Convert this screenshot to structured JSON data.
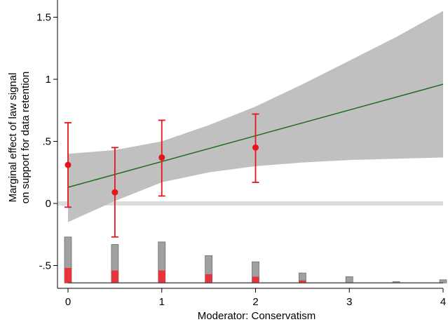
{
  "chart_data": {
    "type": "line",
    "xlabel": "Moderator: Conservatism",
    "ylabel_lines": [
      "Marginal effect of law signal",
      "on support for data retention"
    ],
    "xlim": [
      0,
      4
    ],
    "ylim": [
      -0.65,
      1.6
    ],
    "x_ticks": [
      0,
      1,
      2,
      3,
      4
    ],
    "x_tick_labels": [
      "0",
      "1",
      "2",
      "3",
      "4"
    ],
    "y_ticks": [
      0,
      0.5,
      1,
      1.5,
      -0.5
    ],
    "y_tick_labels": [
      "0",
      ".5",
      "1",
      "1.5",
      "-.5"
    ],
    "zero_line": 0,
    "grid": false,
    "fit_line": {
      "x": [
        0,
        4
      ],
      "y": [
        0.13,
        0.96
      ],
      "color": "#1a6b1a"
    },
    "confidence_band": {
      "x": [
        0,
        0.5,
        1,
        1.5,
        2,
        2.5,
        3,
        3.5,
        4
      ],
      "lower": [
        -0.15,
        0.02,
        0.17,
        0.25,
        0.3,
        0.33,
        0.35,
        0.36,
        0.37
      ],
      "upper": [
        0.4,
        0.43,
        0.5,
        0.63,
        0.78,
        0.96,
        1.15,
        1.34,
        1.55
      ],
      "color": "#c0c0c0"
    },
    "point_estimates": {
      "x": [
        0,
        0.5,
        1,
        2
      ],
      "y": [
        0.31,
        0.09,
        0.37,
        0.45
      ],
      "lower": [
        -0.03,
        -0.27,
        0.06,
        0.17
      ],
      "upper": [
        0.65,
        0.45,
        0.67,
        0.72
      ],
      "color": "#e8141c"
    },
    "histogram": {
      "baseline": -0.64,
      "x": [
        0,
        0.5,
        1,
        1.5,
        2,
        2.5,
        3,
        3.5,
        4
      ],
      "total": [
        -0.27,
        -0.33,
        -0.31,
        -0.42,
        -0.47,
        -0.56,
        -0.59,
        -0.63,
        -0.615
      ],
      "subset": [
        -0.52,
        -0.54,
        -0.54,
        -0.57,
        -0.59,
        -0.62,
        -0.635,
        -0.64,
        -0.64
      ],
      "total_color": "#a0a0a0",
      "subset_color": "#e8323c"
    }
  }
}
